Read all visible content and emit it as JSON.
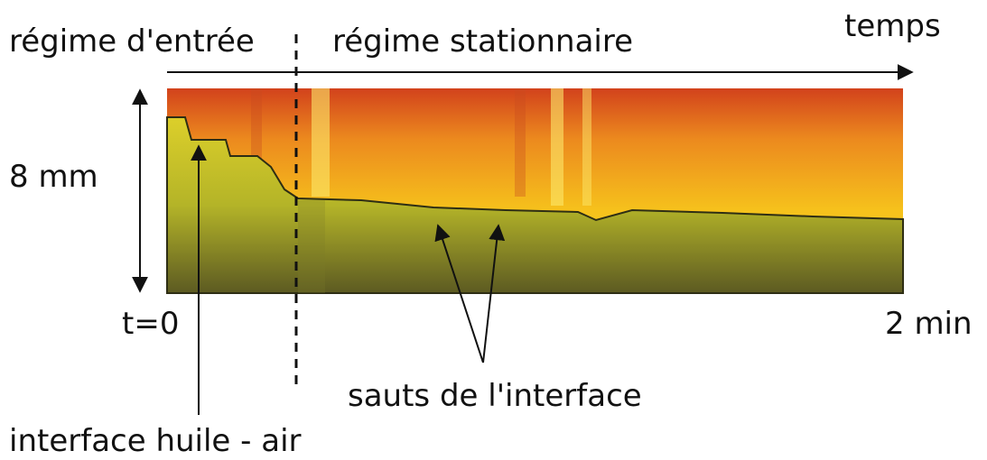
{
  "labels": {
    "regime_entree": "régime d'entrée",
    "regime_stationnaire": "régime stationnaire",
    "temps": "temps",
    "height": "8 mm",
    "start": "t=0",
    "end": "2 min",
    "jumps": "sauts de l'interface",
    "interface": "interface huile - air"
  }
}
